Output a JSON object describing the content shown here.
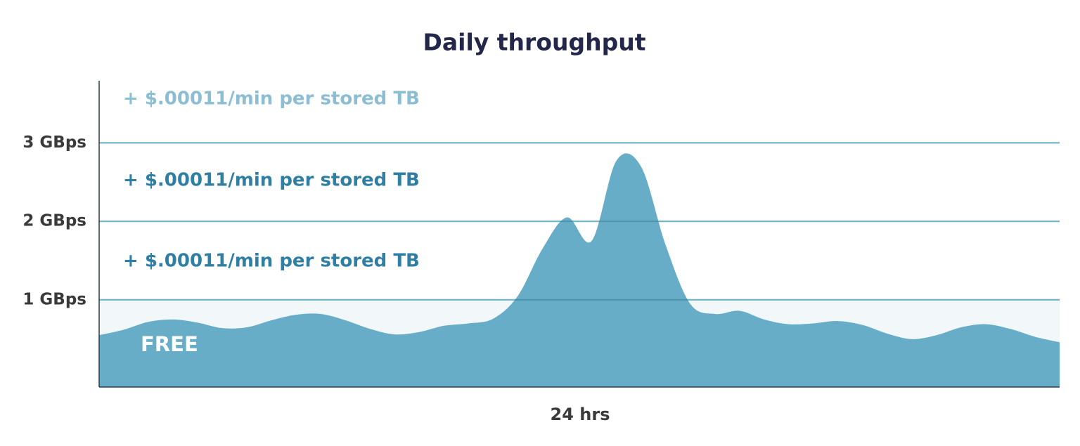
{
  "chart_data": {
    "type": "area",
    "title": "Daily throughput",
    "x_label": "24 hrs",
    "values": [
      0.55,
      0.62,
      0.72,
      0.75,
      0.71,
      0.64,
      0.65,
      0.74,
      0.81,
      0.82,
      0.74,
      0.63,
      0.56,
      0.59,
      0.67,
      0.7,
      0.76,
      1.05,
      1.65,
      2.05,
      1.75,
      2.77,
      2.7,
      1.7,
      0.95,
      0.82,
      0.86,
      0.75,
      0.69,
      0.7,
      0.73,
      0.68,
      0.57,
      0.5,
      0.55,
      0.65,
      0.69,
      0.63,
      0.53,
      0.46
    ],
    "color": "#68adc7",
    "ylim": [
      -0.11,
      3.79
    ],
    "yticks": [
      {
        "value": 1,
        "label": "1 GBps"
      },
      {
        "value": 2,
        "label": "2 GBps"
      },
      {
        "value": 3,
        "label": "3 GBps"
      }
    ],
    "grid": true,
    "grid_color": "#a9dff0",
    "free_band_color": "#f2f8fa",
    "free_label": "FREE",
    "annotations": [
      "+ $.00011/min per stored TB",
      "+ $.00011/min per stored TB",
      "+ $.00011/min per stored TB"
    ]
  }
}
